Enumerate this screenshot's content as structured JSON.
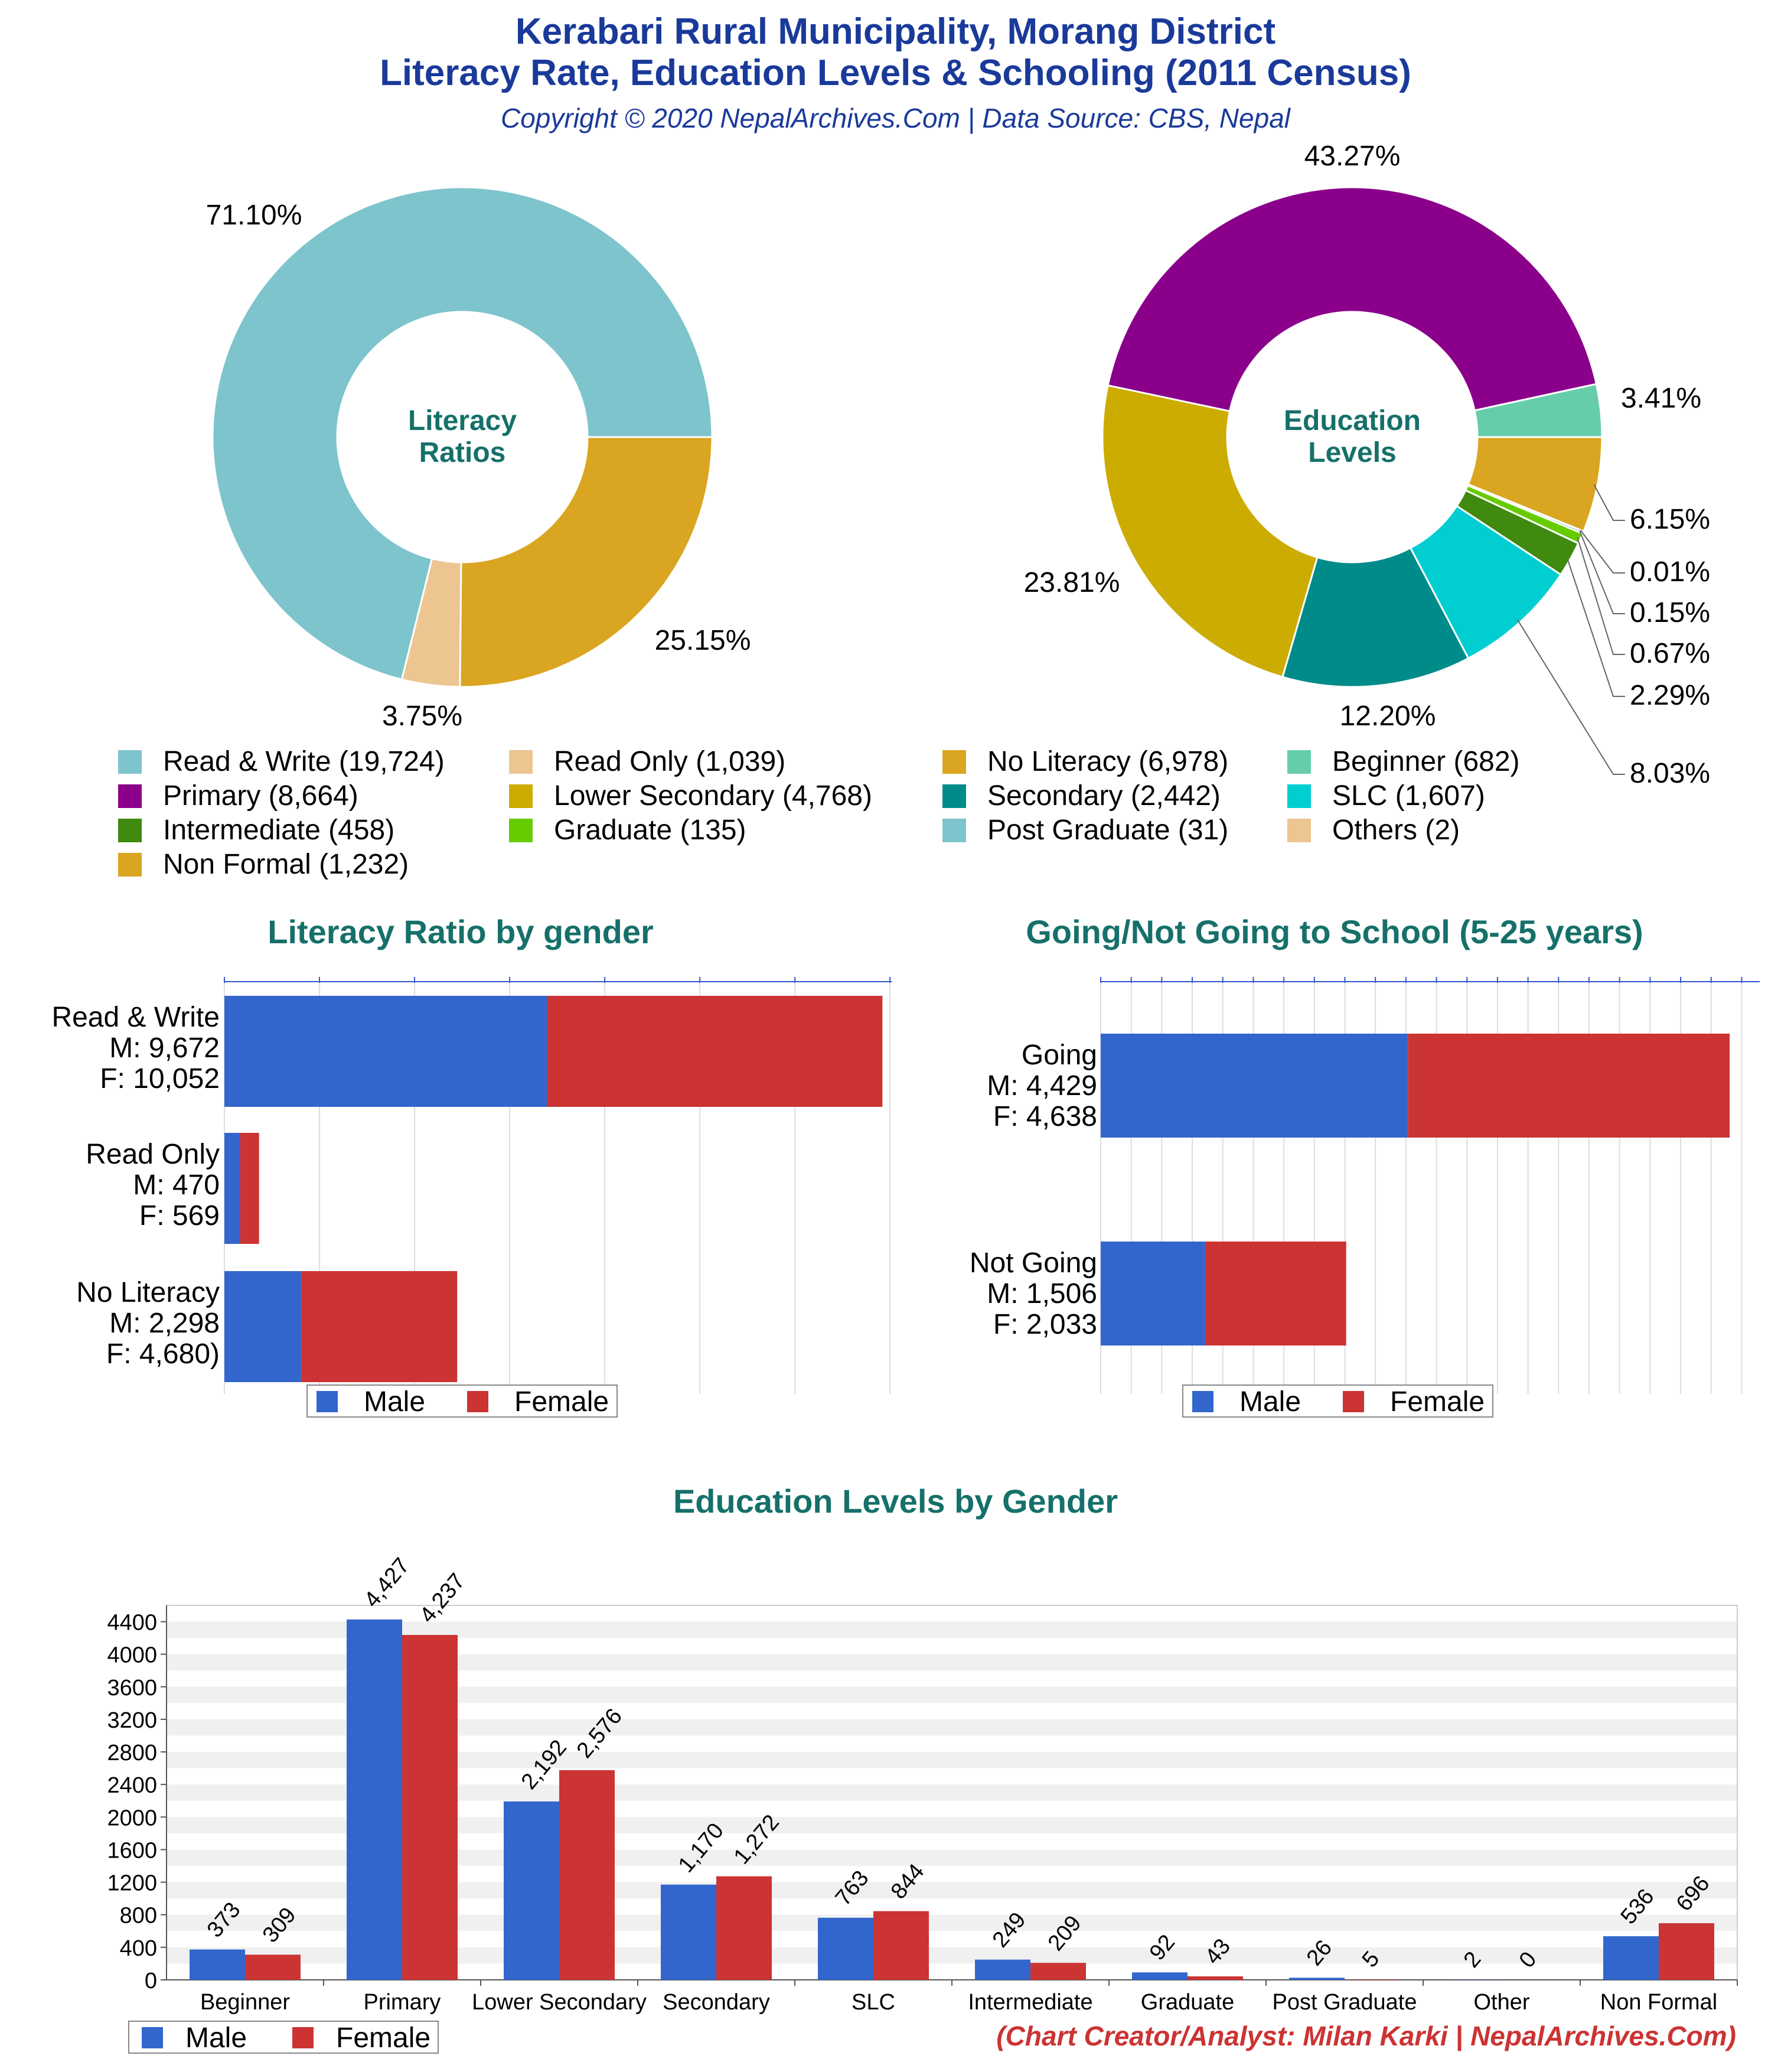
{
  "header": {
    "title_line1": "Kerabari Rural Municipality, Morang District",
    "title_line2": "Literacy Rate, Education Levels & Schooling (2011 Census)",
    "copyright": "Copyright © 2020 NepalArchives.Com | Data Source: CBS, Nepal"
  },
  "credit": "(Chart Creator/Analyst: Milan Karki | NepalArchives.Com)",
  "colors": {
    "male": "#3366cc",
    "female": "#cc3333",
    "section_title": "#16706a",
    "header": "#1a3a9a"
  },
  "chart_data": [
    {
      "id": "literacy-ratios",
      "type": "pie",
      "center_label": [
        "Literacy",
        "Ratios"
      ],
      "slices": [
        {
          "label": "Read & Write",
          "value": 19724,
          "pct_label": "71.10%",
          "color": "#7ec4cc"
        },
        {
          "label": "Read Only",
          "value": 1039,
          "pct_label": "3.75%",
          "color": "#ecc591"
        },
        {
          "label": "No Literacy",
          "value": 6978,
          "pct_label": "25.15%",
          "color": "#daa520"
        }
      ]
    },
    {
      "id": "education-levels",
      "type": "pie",
      "center_label": [
        "Education",
        "Levels"
      ],
      "slices": [
        {
          "label": "Beginner",
          "value": 682,
          "pct_label": "3.41%",
          "color": "#66cdaa"
        },
        {
          "label": "Primary",
          "value": 8664,
          "pct_label": "43.27%",
          "color": "#8b008b"
        },
        {
          "label": "Intermediate",
          "value": 458,
          "pct_label": "2.29%",
          "color": "#3f8a0f"
        },
        {
          "label": "Non Formal",
          "value": 1232,
          "pct_label": "6.15%",
          "color": "#daa520"
        },
        {
          "label": "Lower Secondary",
          "value": 4768,
          "pct_label": "23.81%",
          "color": "#ccac00"
        },
        {
          "label": "Graduate",
          "value": 135,
          "pct_label": "0.67%",
          "color": "#66cc00"
        },
        {
          "label": "Secondary",
          "value": 2442,
          "pct_label": "12.20%",
          "color": "#008b8b"
        },
        {
          "label": "Post Graduate",
          "value": 31,
          "pct_label": "0.15%",
          "color": "#7ec4cc"
        },
        {
          "label": "SLC",
          "value": 1607,
          "pct_label": "8.03%",
          "color": "#00ced1"
        },
        {
          "label": "Others",
          "value": 2,
          "pct_label": "0.01%",
          "color": "#ecc591"
        }
      ],
      "draw_order": [
        "Non Formal",
        "Others",
        "Post Graduate",
        "Graduate",
        "Intermediate",
        "SLC",
        "Secondary",
        "Lower Secondary",
        "Primary",
        "Beginner"
      ]
    },
    {
      "id": "literacy-by-gender",
      "type": "bar",
      "orientation": "horizontal",
      "stacked": true,
      "title": "Literacy Ratio by gender",
      "categories": [
        {
          "lines": [
            "Read & Write",
            "M: 9,672",
            "F: 10,052"
          ]
        },
        {
          "lines": [
            "Read Only",
            "M: 470",
            "F: 569"
          ]
        },
        {
          "lines": [
            "No Literacy",
            "M: 2,298",
            "F: 4,680)"
          ]
        }
      ],
      "series": [
        {
          "name": "Male",
          "values": [
            9672,
            470,
            2298
          ]
        },
        {
          "name": "Female",
          "values": [
            10052,
            569,
            4680
          ]
        }
      ],
      "xlim": [
        0,
        20000
      ],
      "legend": "bottom"
    },
    {
      "id": "school-going",
      "type": "bar",
      "orientation": "horizontal",
      "stacked": true,
      "title": "Going/Not Going to School (5-25 years)",
      "categories": [
        {
          "lines": [
            "Going",
            "M: 4,429",
            "F: 4,638"
          ]
        },
        {
          "lines": [
            "Not Going",
            "M: 1,506",
            "F: 2,033"
          ]
        }
      ],
      "series": [
        {
          "name": "Male",
          "values": [
            4429,
            1506
          ]
        },
        {
          "name": "Female",
          "values": [
            4638,
            2033
          ]
        }
      ],
      "xlim": [
        0,
        9500
      ],
      "legend": "bottom"
    },
    {
      "id": "education-by-gender",
      "type": "bar",
      "orientation": "vertical",
      "title": "Education Levels by Gender",
      "categories": [
        "Beginner",
        "Primary",
        "Lower Secondary",
        "Secondary",
        "SLC",
        "Intermediate",
        "Graduate",
        "Post Graduate",
        "Other",
        "Non Formal"
      ],
      "series": [
        {
          "name": "Male",
          "values": [
            373,
            4427,
            2192,
            1170,
            763,
            249,
            92,
            26,
            2,
            536
          ],
          "labels": [
            "373",
            "4,427",
            "2,192",
            "1,170",
            "763",
            "249",
            "92",
            "26",
            "2",
            "536"
          ]
        },
        {
          "name": "Female",
          "values": [
            309,
            4237,
            2576,
            1272,
            844,
            209,
            43,
            5,
            0,
            696
          ],
          "labels": [
            "309",
            "4,237",
            "2,576",
            "1,272",
            "844",
            "209",
            "43",
            "5",
            "0",
            "696"
          ]
        }
      ],
      "ylim": [
        0,
        4600
      ],
      "yticks": [
        "0",
        "400",
        "800",
        "1200",
        "1600",
        "2000",
        "2400",
        "2800",
        "3200",
        "3600",
        "4000",
        "4400"
      ],
      "grid": true,
      "legend": "bottom-left"
    }
  ]
}
